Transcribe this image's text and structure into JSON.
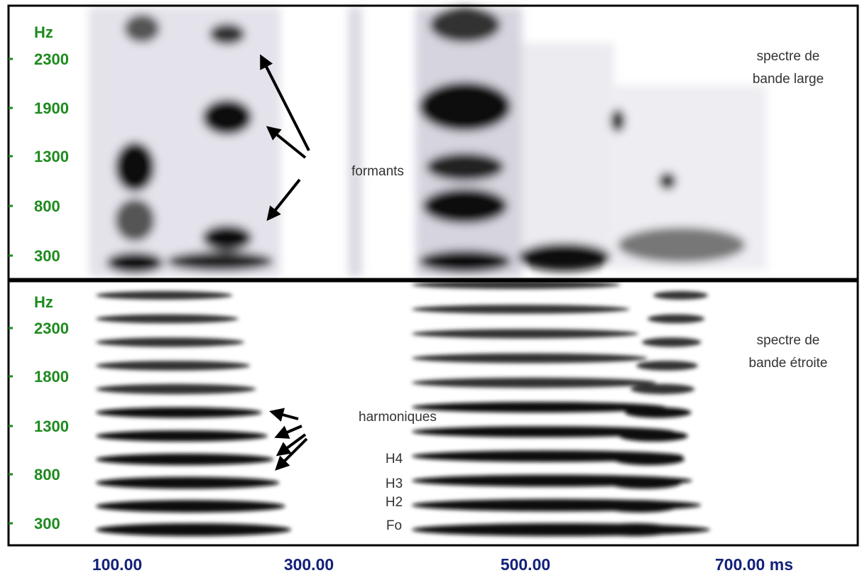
{
  "panels": [
    {
      "y_axis": {
        "unit": "Hz",
        "ticks": [
          "2300",
          "1900",
          "1300",
          "800",
          "300"
        ]
      },
      "label": [
        "spectre de",
        "bande large"
      ],
      "annotations": [
        "formants"
      ]
    },
    {
      "y_axis": {
        "unit": "Hz",
        "ticks": [
          "2300",
          "1800",
          "1300",
          "800",
          "300"
        ]
      },
      "label": [
        "spectre de",
        "bande étroite"
      ],
      "annotations": [
        "harmoniques",
        "H4",
        "H3",
        "H2",
        "Fo"
      ]
    }
  ],
  "x_axis": {
    "ticks": [
      "100.00",
      "300.00",
      "500.00",
      "700.00 ms"
    ]
  }
}
